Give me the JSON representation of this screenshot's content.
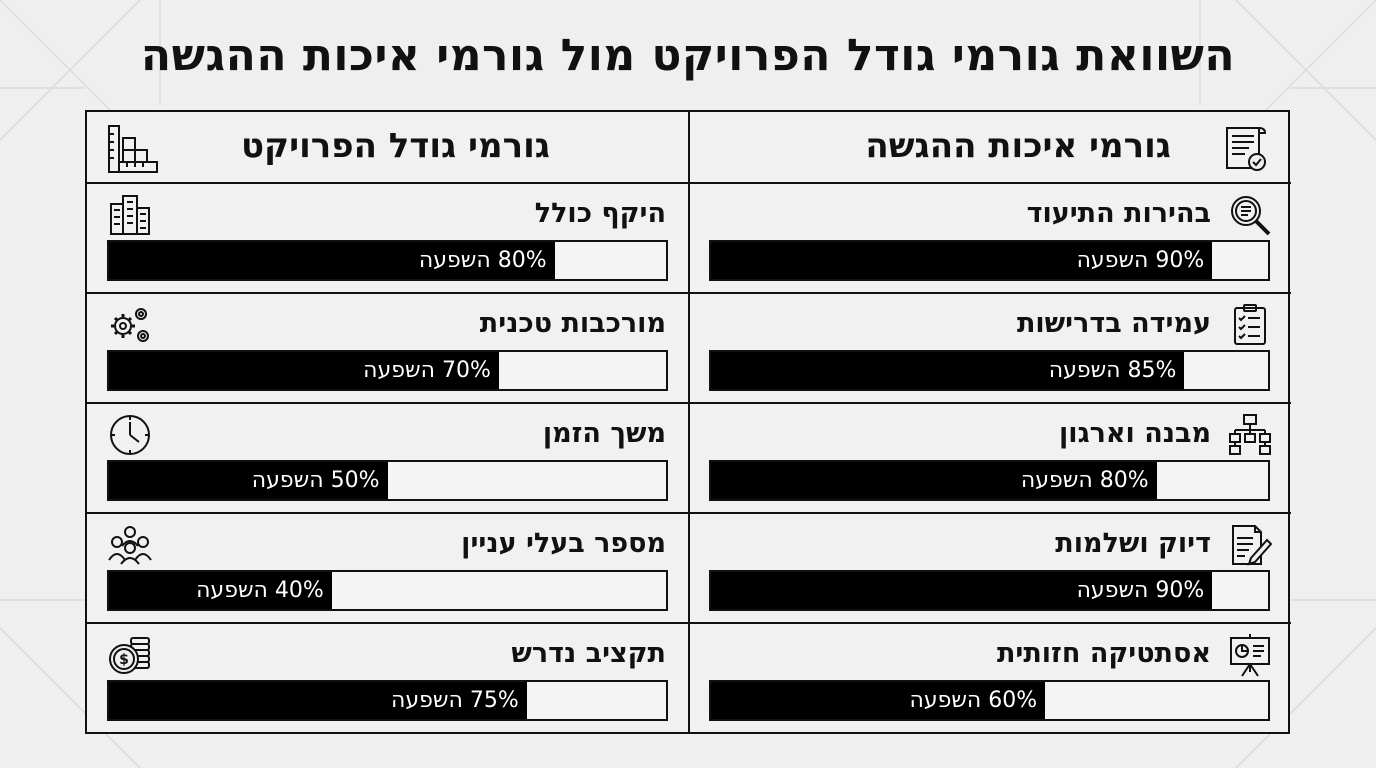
{
  "title": "השוואת גורמי גודל הפרויקט מול גורמי איכות ההגשה",
  "columns": [
    {
      "id": "size",
      "header": "גורמי גודל הפרויקט",
      "header_icon": "ruler-blocks-icon",
      "rows": [
        {
          "label": "היקף כולל",
          "value": 80,
          "value_text": "80% השפעה",
          "icon": "building-icon"
        },
        {
          "label": "מורכבות טכנית",
          "value": 70,
          "value_text": "70% השפעה",
          "icon": "gears-icon"
        },
        {
          "label": "משך הזמן",
          "value": 50,
          "value_text": "50% השפעה",
          "icon": "clock-icon"
        },
        {
          "label": "מספר בעלי עניין",
          "value": 40,
          "value_text": "40% השפעה",
          "icon": "people-group-icon"
        },
        {
          "label": "תקציב נדרש",
          "value": 75,
          "value_text": "75% השפעה",
          "icon": "coins-icon"
        }
      ]
    },
    {
      "id": "quality",
      "header": "גורמי איכות ההגשה",
      "header_icon": "document-check-icon",
      "rows": [
        {
          "label": "בהירות התיעוד",
          "value": 90,
          "value_text": "90% השפעה",
          "icon": "magnifier-document-icon"
        },
        {
          "label": "עמידה בדרישות",
          "value": 85,
          "value_text": "85% השפעה",
          "icon": "clipboard-checklist-icon"
        },
        {
          "label": "מבנה וארגון",
          "value": 80,
          "value_text": "80% השפעה",
          "icon": "org-chart-icon"
        },
        {
          "label": "דיוק ושלמות",
          "value": 90,
          "value_text": "90% השפעה",
          "icon": "document-pen-icon"
        },
        {
          "label": "אסתטיקה חזותית",
          "value": 60,
          "value_text": "60% השפעה",
          "icon": "presentation-board-icon"
        }
      ]
    }
  ]
}
